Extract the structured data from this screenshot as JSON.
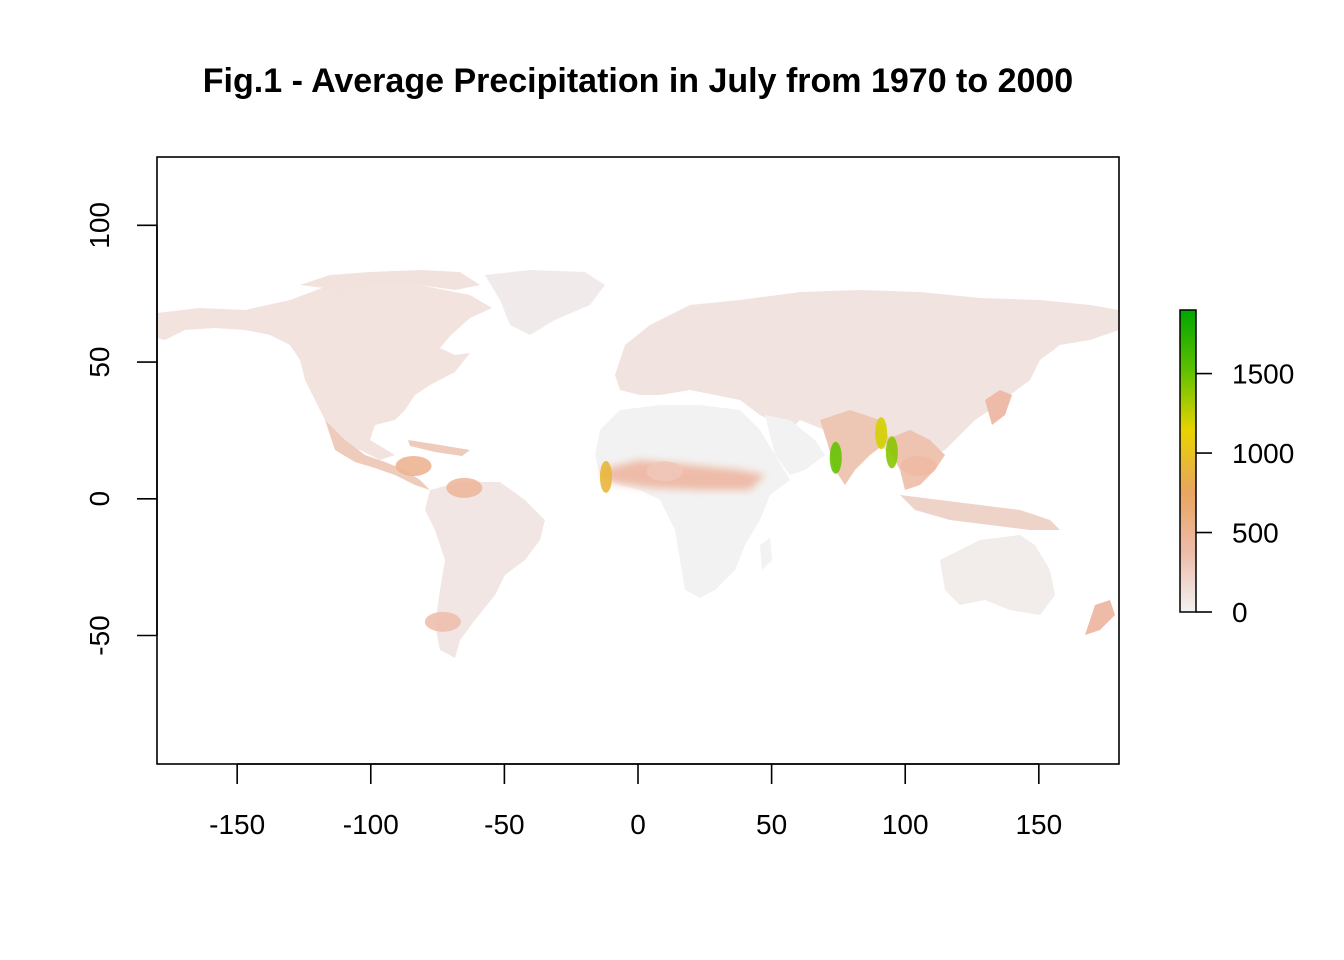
{
  "title": "Fig.1 - Average Precipitation in July from 1970 to 2000",
  "chart_data": {
    "type": "heatmap",
    "title": "Fig.1 - Average Precipitation in July from 1970 to 2000",
    "xlabel": "",
    "ylabel": "",
    "xlim": [
      -180,
      180
    ],
    "ylim": [
      -97,
      125
    ],
    "x_ticks": [
      -150,
      -100,
      -50,
      0,
      50,
      100,
      150
    ],
    "y_ticks": [
      -50,
      0,
      50,
      100
    ],
    "x_tick_labels": [
      "-150",
      "-100",
      "-50",
      "0",
      "50",
      "100",
      "150"
    ],
    "y_tick_labels": [
      "-50",
      "0",
      "50",
      "100"
    ],
    "grid": false,
    "legend": {
      "placement": "right",
      "range": [
        0,
        1900
      ],
      "ticks": [
        0,
        500,
        1000,
        1500
      ],
      "tick_labels": [
        "0",
        "500",
        "1000",
        "1500"
      ],
      "colors": [
        "#f2f2f2",
        "#eebba8",
        "#e8a55e",
        "#e9d300",
        "#5ec100",
        "#00a600"
      ]
    },
    "land_color": "#f1e6e3",
    "ocean_color": "#ffffff",
    "high_precip_regions": [
      {
        "name": "India west coast",
        "lon": 74,
        "lat": 15,
        "value": 1500
      },
      {
        "name": "Bangladesh",
        "lon": 91,
        "lat": 24,
        "value": 1200
      },
      {
        "name": "Myanmar coast",
        "lon": 95,
        "lat": 17,
        "value": 1400
      },
      {
        "name": "West Africa coast",
        "lon": -12,
        "lat": 8,
        "value": 900
      },
      {
        "name": "Central America",
        "lon": -84,
        "lat": 12,
        "value": 500
      },
      {
        "name": "Northern South America",
        "lon": -65,
        "lat": 4,
        "value": 450
      },
      {
        "name": "Sahel band",
        "lon": 10,
        "lat": 10,
        "value": 300
      },
      {
        "name": "Southeast Asia",
        "lon": 105,
        "lat": 12,
        "value": 400
      },
      {
        "name": "Southern Chile",
        "lon": -73,
        "lat": -45,
        "value": 350
      }
    ]
  }
}
